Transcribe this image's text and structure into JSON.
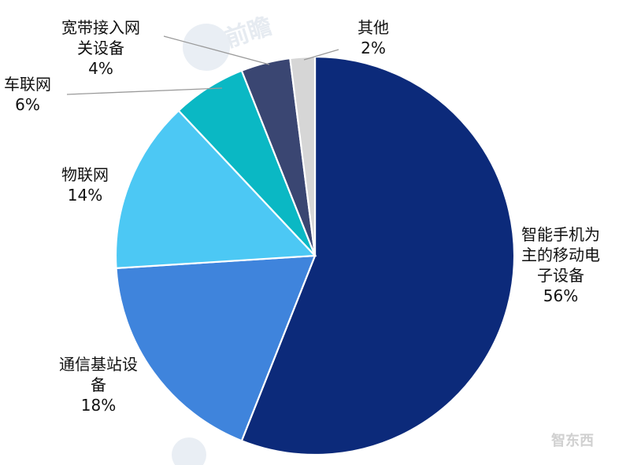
{
  "chart_data": {
    "type": "pie",
    "title": "",
    "colors": [
      "#0c2a7a",
      "#3f84dc",
      "#4cc8f4",
      "#0ab8c4",
      "#3a4672",
      "#d6d6d6"
    ],
    "slices": [
      {
        "label_lines": [
          "智能手机为",
          "主的移动电",
          "子设备"
        ],
        "pct_text": "56%",
        "value": 56
      },
      {
        "label_lines": [
          "通信基站设",
          "备"
        ],
        "pct_text": "18%",
        "value": 18
      },
      {
        "label_lines": [
          "物联网"
        ],
        "pct_text": "14%",
        "value": 14
      },
      {
        "label_lines": [
          "车联网"
        ],
        "pct_text": "6%",
        "value": 6
      },
      {
        "label_lines": [
          "宽带接入网",
          "关设备"
        ],
        "pct_text": "4%",
        "value": 4
      },
      {
        "label_lines": [
          "其他"
        ],
        "pct_text": "2%",
        "value": 2
      }
    ]
  },
  "watermark": {
    "logo_text": "前瞻",
    "corner_logo_text": "智东西"
  }
}
